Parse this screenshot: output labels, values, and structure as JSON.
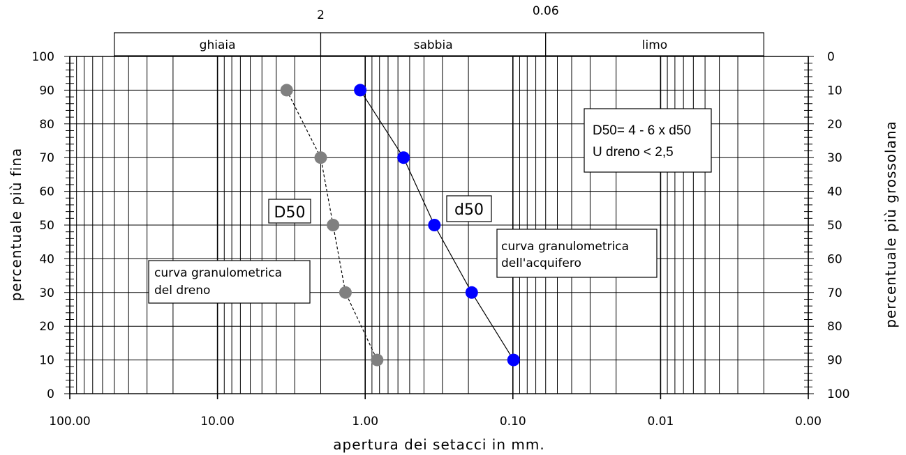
{
  "chart_data": {
    "type": "scatter",
    "x_scale": "log-reversed",
    "xlim": [
      100,
      0.001
    ],
    "ylim": [
      0,
      100
    ],
    "grid": true,
    "xlabel": "apertura dei setacci in mm.",
    "ylabel_left": "percentuale più fina",
    "ylabel_right": "percentuale più grossolana",
    "x_ticks": [
      {
        "value": 100,
        "label": "100.00"
      },
      {
        "value": 10,
        "label": "10.00"
      },
      {
        "value": 1,
        "label": "1.00"
      },
      {
        "value": 0.1,
        "label": "0.10"
      },
      {
        "value": 0.01,
        "label": "0.01"
      },
      {
        "value": 0.001,
        "label": "0.00"
      }
    ],
    "y_ticks_left": [
      "0",
      "10",
      "20",
      "30",
      "40",
      "50",
      "60",
      "70",
      "80",
      "90",
      "100"
    ],
    "y_ticks_right": [
      "100",
      "90",
      "80",
      "70",
      "60",
      "50",
      "40",
      "30",
      "20",
      "10",
      "0"
    ],
    "band_boundaries": [
      {
        "value": 2,
        "label": "2"
      },
      {
        "value": 0.06,
        "label": "0.06"
      }
    ],
    "bands": [
      {
        "label": "ghiaia",
        "from": 50,
        "to": 2
      },
      {
        "label": "sabbia",
        "from": 2,
        "to": 0.06
      },
      {
        "label": "limo",
        "from": 0.06,
        "to": 0.002
      }
    ],
    "series": [
      {
        "name": "curva granulometrica del dreno",
        "color": "#808080",
        "line_style": "dashed",
        "points": [
          [
            3.4,
            90
          ],
          [
            2.0,
            70
          ],
          [
            1.65,
            50
          ],
          [
            1.36,
            30
          ],
          [
            0.83,
            10
          ]
        ]
      },
      {
        "name": "curva granulometrica dell'acquifero",
        "color": "#0000ff",
        "line_style": "solid",
        "points": [
          [
            1.08,
            90
          ],
          [
            0.55,
            70
          ],
          [
            0.34,
            50
          ],
          [
            0.19,
            30
          ],
          [
            0.099,
            10
          ]
        ]
      }
    ],
    "annotations": [
      {
        "id": "drain",
        "lines": [
          "curva granulometrica",
          "del dreno"
        ]
      },
      {
        "id": "aquifer",
        "lines": [
          "curva granulometrica",
          "dell'acquifero"
        ]
      },
      {
        "id": "D50",
        "lines": [
          "D50"
        ]
      },
      {
        "id": "d50",
        "lines": [
          "d50"
        ]
      },
      {
        "id": "criteria",
        "lines": [
          "D50=  4 - 6 x d50",
          "U dreno <  2,5"
        ]
      }
    ]
  }
}
